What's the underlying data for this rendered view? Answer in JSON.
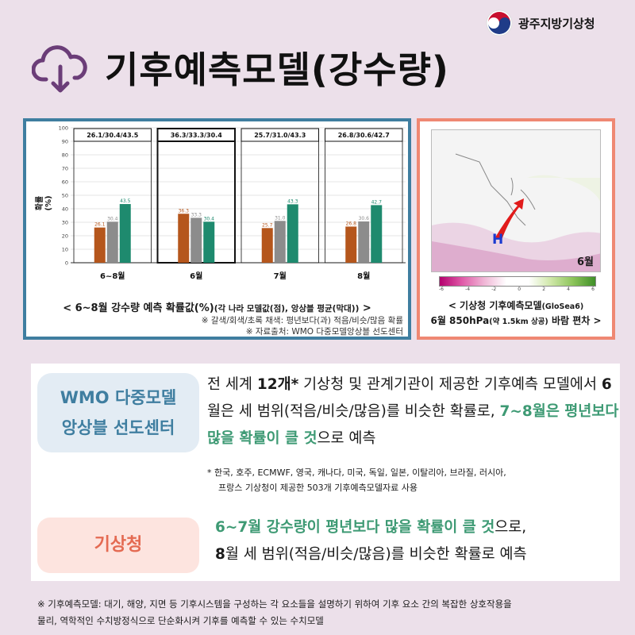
{
  "header": {
    "org_name": "광주지방기상청",
    "title": "기후예측모델(강수량)"
  },
  "left_panel": {
    "ylabel": "확률 (%)",
    "caption_main": "< 6~8월 강수량 예측 확률값(%)",
    "caption_sub": "(각 나라 모델값(점), 앙상블 평균(막대))",
    "caption_end": " >",
    "note_color": "※ 갈색/회색/초록 채색: 평년보다(과) 적음/비슷/많음 확률",
    "note_source": "※ 자료출처: WMO 다중모델앙상블 선도센터"
  },
  "chart_data": {
    "type": "bar",
    "categories": [
      "6~8월",
      "6월",
      "7월",
      "8월"
    ],
    "box_labels": [
      "26.1/30.4/43.5",
      "36.3/33.3/30.4",
      "25.7/31.0/43.3",
      "26.8/30.6/42.7"
    ],
    "series": [
      {
        "name": "적음",
        "color": "#b5561c",
        "values": [
          26.1,
          36.3,
          25.7,
          26.8
        ]
      },
      {
        "name": "비슷",
        "color": "#8c8c8c",
        "values": [
          30.4,
          33.3,
          31.0,
          30.6
        ]
      },
      {
        "name": "많음",
        "color": "#1e8a6e",
        "values": [
          43.5,
          30.4,
          43.3,
          42.7
        ]
      }
    ],
    "data_labels": [
      [
        "26.1",
        "30.4",
        "43.5"
      ],
      [
        "36.3",
        "33.3",
        "30.4"
      ],
      [
        "25.7",
        "31.0",
        "43.3"
      ],
      [
        "26.8",
        "30.6",
        "42.7"
      ]
    ],
    "ylabel": "확률 (%)",
    "ylim": [
      0,
      100
    ],
    "yticks": [
      "0",
      "10",
      "20",
      "30",
      "40",
      "50",
      "60",
      "70",
      "80",
      "90",
      "100"
    ],
    "grid": true
  },
  "right_panel": {
    "map_month": "6월",
    "map_high_label": "H",
    "colorbar_ticks": [
      "-6",
      "-4",
      "-2",
      "0",
      "2",
      "4",
      "6"
    ],
    "caption_line1": "< 기상청 기후예측모델",
    "caption_line1_small": "(GloSea6)",
    "caption_line2a": "6월 850hPa",
    "caption_line2_small": "(약 1.5km 상공)",
    "caption_line2b": " 바람 편차 >"
  },
  "wmo": {
    "label_line1": "WMO 다중모델",
    "label_line2": "앙상블 선도센터",
    "text_a": "전 세계 ",
    "text_b": "12개*",
    "text_c": " 기상청 및 관계기관이 제공한 기후예측 모델에서 ",
    "text_d": "6",
    "text_e": "월은 세 범위(적음/비슷/많음)를 비슷한 확률로, ",
    "text_f": "7~8월은 평년보다 많을 확률이 클 것",
    "text_g": "으로 예측",
    "note_line1": "* 한국, 호주, ECMWF, 영국, 캐나다, 미국, 독일, 일본, 이탈리아, 브라질, 러시아,",
    "note_line2": "프랑스 기상청이 제공한 503개 기후예측모델자료 사용"
  },
  "kma": {
    "label": "기상청",
    "text_a": "6~7월 강수량이 평년보다 많을 확률이 클 것",
    "text_b": "으로,",
    "text_c": "8",
    "text_d": "월 세 범위(적음/비슷/많음)를 비슷한 확률로 예측"
  },
  "footnote": {
    "line1": "※ 기후예측모델: 대기, 해양, 지면 등 기후시스템을 구성하는 각 요소들을 설명하기 위하여 기후 요소 간의 복잡한 상호작용을",
    "line2": "물리, 역학적인 수치방정식으로 단순화시켜 기후를 예측할 수 있는 수치모델"
  }
}
